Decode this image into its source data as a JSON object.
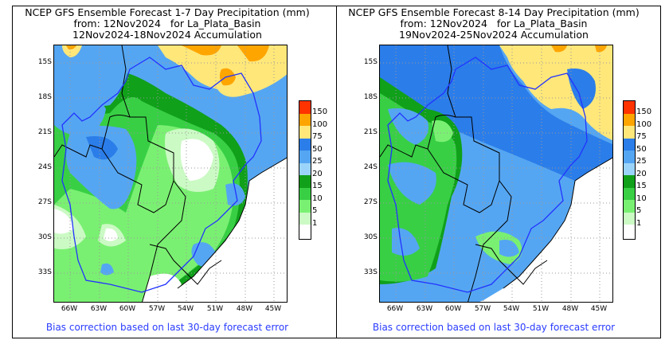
{
  "panels": [
    {
      "title": [
        "NCEP GFS Ensemble Forecast 1-7 Day Precipitation (mm)",
        "from: 12Nov2024   for La_Plata_Basin",
        "12Nov2024-18Nov2024 Accumulation"
      ],
      "footer": "Bias correction based on last 30-day forecast error"
    },
    {
      "title": [
        "NCEP GFS Ensemble Forecast 8-14 Day Precipitation (mm)",
        "from: 12Nov2024   for La_Plata_Basin",
        "19Nov2024-25Nov2024 Accumulation"
      ],
      "footer": "Bias correction based on last 30-day forecast error"
    }
  ],
  "lat_labels": [
    "15S",
    "18S",
    "21S",
    "24S",
    "27S",
    "30S",
    "33S"
  ],
  "lon_labels": [
    "66W",
    "63W",
    "60W",
    "57W",
    "54W",
    "51W",
    "48W",
    "45W"
  ],
  "legend": {
    "labels": [
      "150",
      "100",
      "75",
      "50",
      "25",
      "20",
      "15",
      "10",
      "5",
      "1"
    ],
    "colors": [
      "#ff3300",
      "#ffa500",
      "#ffe77a",
      "#2b7de9",
      "#55a6f2",
      "#9bd4fb",
      "#10a01a",
      "#38cf45",
      "#7af072",
      "#cbfac4",
      "#ffffff"
    ]
  },
  "colors": {
    "basin_outline": "#2233ff",
    "borders": "#000000",
    "footer_text": "#2a3cff"
  }
}
